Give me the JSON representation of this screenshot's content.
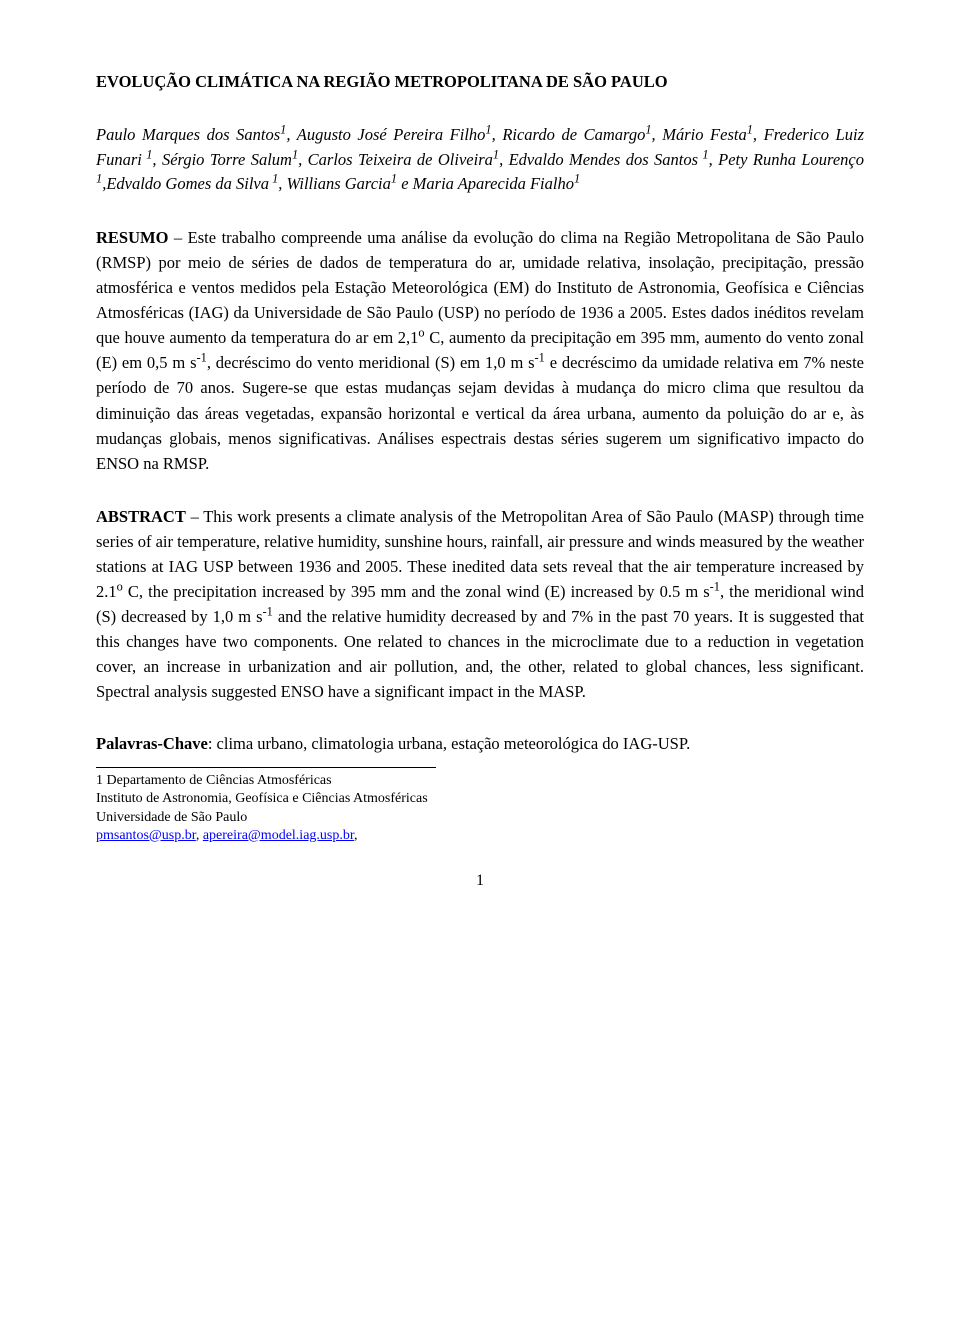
{
  "title": "EVOLUÇÃO CLIMÁTICA NA REGIÃO METROPOLITANA DE SÃO PAULO",
  "authors_html": "Paulo Marques dos Santos<sup>1</sup>, Augusto José Pereira Filho<sup>1</sup>, Ricardo de Camargo<sup>1</sup>, Mário Festa<sup>1</sup>, Frederico Luiz Funari<sup> 1</sup>, Sérgio Torre Salum<sup>1</sup>, Carlos Teixeira de Oliveira<sup>1</sup>, Edvaldo Mendes dos Santos<sup> 1</sup>, Pety Runha Lourenço<sup> 1</sup>,Edvaldo Gomes da Silva<sup> 1</sup>, Willians Garcia<sup>1</sup> e Maria Aparecida Fialho<sup>1</sup>",
  "resumo_label": "RESUMO",
  "resumo_text_html": " – Este trabalho compreende uma análise da evolução do clima na Região Metropolitana de São Paulo (RMSP) por meio de séries de dados de temperatura do ar, umidade relativa, insolação, precipitação, pressão atmosférica e ventos medidos pela Estação Meteorológica (EM) do Instituto de Astronomia, Geofísica e Ciências Atmosféricas (IAG) da Universidade de São Paulo (USP) no período de 1936 a 2005. Estes dados inéditos revelam que houve aumento da temperatura do ar em 2,1<sup>o</sup> C, aumento da precipitação em 395 mm, aumento do vento zonal (E) em 0,5 m s<sup>-1</sup>, decréscimo do vento meridional (S) em 1,0 m s<sup>-1</sup> e decréscimo da umidade relativa em 7% neste período de 70 anos. Sugere-se que estas mudanças sejam devidas à mudança do micro clima que resultou da diminuição das áreas vegetadas, expansão horizontal e vertical da área urbana, aumento da poluição do ar e, às mudanças globais, menos significativas. Análises espectrais destas séries sugerem um significativo impacto do ENSO na RMSP.",
  "abstract_label": "ABSTRACT",
  "abstract_text_html": " – This work presents a climate analysis of the Metropolitan Area of São Paulo (MASP) through time series of air temperature, relative humidity, sunshine hours, rainfall, air pressure and winds measured by the weather stations at IAG USP between 1936 and 2005.  These inedited data sets reveal that the air temperature increased by 2.1<sup>o</sup> C, the precipitation increased by 395 mm and the zonal wind (E) increased by 0.5 m s<sup>-1</sup>, the meridional wind (S) decreased by 1,0 m s<sup>-1</sup> and the relative humidity decreased by and 7% in the past 70 years. It is suggested that this changes have two components. One related to chances in the microclimate due to a reduction in vegetation cover, an increase in urbanization and air pollution, and, the other, related to global chances, less significant.  Spectral analysis suggested ENSO have a significant impact in the MASP.",
  "keywords_label": "Palavras-Chave",
  "keywords_text": ": clima urbano, climatologia urbana, estação meteorológica do IAG-USP.",
  "footnote_line1": "1 Departamento de Ciências Atmosféricas",
  "footnote_line2": "Instituto de Astronomia, Geofísica e Ciências Atmosféricas",
  "footnote_line3": "Universidade de São Paulo",
  "footnote_email1": "pmsantos@usp.br",
  "footnote_email_sep": ", ",
  "footnote_email2": "apereira@model.iag.usp.br",
  "footnote_trailing": ",",
  "page_number": "1",
  "colors": {
    "link": "#0000ff",
    "text": "#000000",
    "background": "#ffffff"
  }
}
